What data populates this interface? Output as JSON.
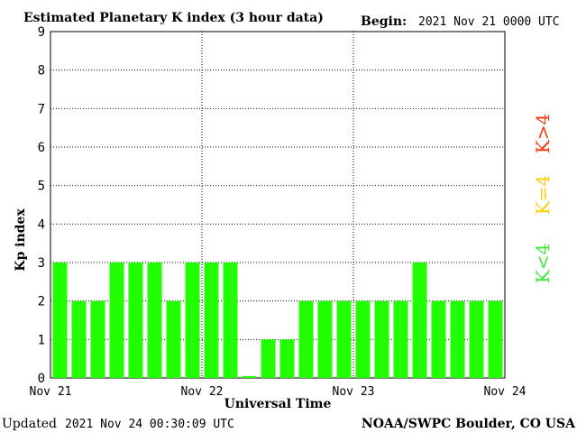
{
  "header": {
    "title": "Estimated Planetary K index (3 hour data)",
    "begin_label": "Begin:",
    "begin_value": "2021 Nov 21 0000 UTC"
  },
  "footer": {
    "updated_label": "Updated",
    "updated_value": "2021 Nov 24 00:30:09 UTC",
    "credit": "NOAA/SWPC Boulder, CO USA"
  },
  "legend": [
    {
      "text": "K>4",
      "color": "#ff3300"
    },
    {
      "text": "K=4",
      "color": "#ffcc00"
    },
    {
      "text": "K<4",
      "color": "#33ee33"
    }
  ],
  "chart_data": {
    "type": "bar",
    "title": "Estimated Planetary K index (3 hour data)",
    "xlabel": "Universal Time",
    "ylabel": "Kp index",
    "ylim": [
      0,
      9
    ],
    "yticks": [
      "0",
      "1",
      "2",
      "3",
      "4",
      "5",
      "6",
      "7",
      "8",
      "9"
    ],
    "xticks": [
      "Nov 21",
      "Nov 22",
      "Nov 23",
      "Nov 24"
    ],
    "grid": true,
    "bar_color": "#22ff00",
    "values": [
      3,
      2,
      2,
      3,
      3,
      3,
      2,
      3,
      3,
      3,
      0.05,
      1,
      1,
      2,
      2,
      2,
      2,
      2,
      2,
      3,
      2,
      2,
      2,
      2
    ]
  }
}
